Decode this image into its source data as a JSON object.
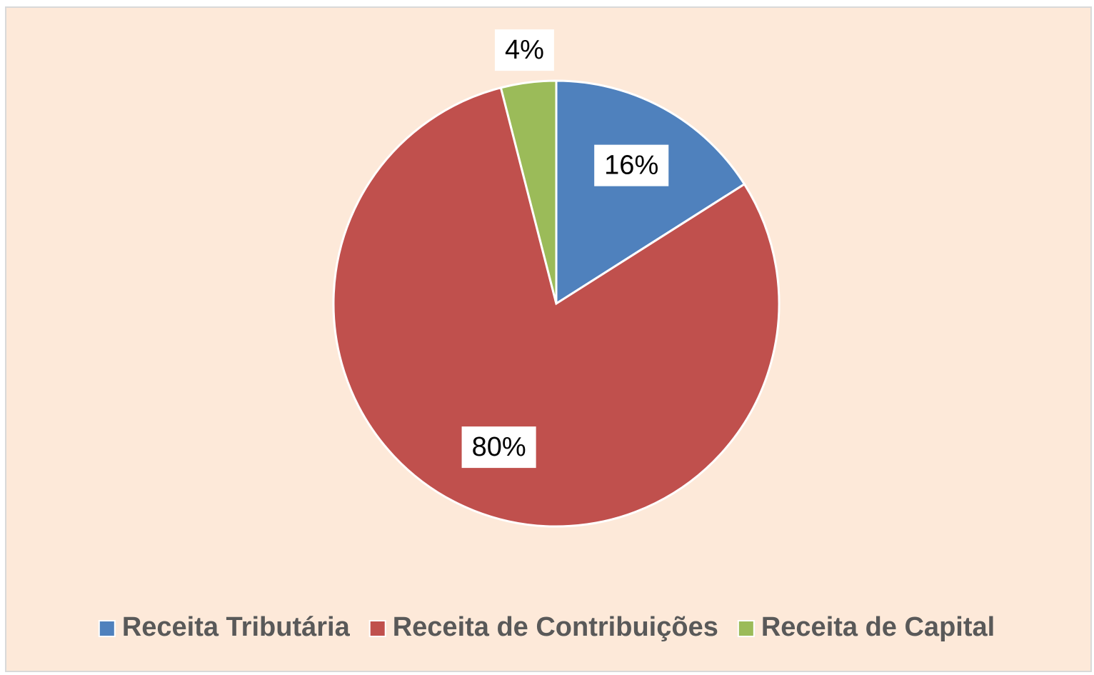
{
  "chart_data": {
    "type": "pie",
    "categories": [
      "Receita Tributária",
      "Receita de Contribuições",
      "Receita de Capital"
    ],
    "values": [
      16,
      80,
      4
    ],
    "value_labels": [
      "16%",
      "80%",
      "4%"
    ],
    "colors": [
      "#4f81bd",
      "#c0504d",
      "#9bbb59"
    ],
    "legend": "bottom"
  }
}
